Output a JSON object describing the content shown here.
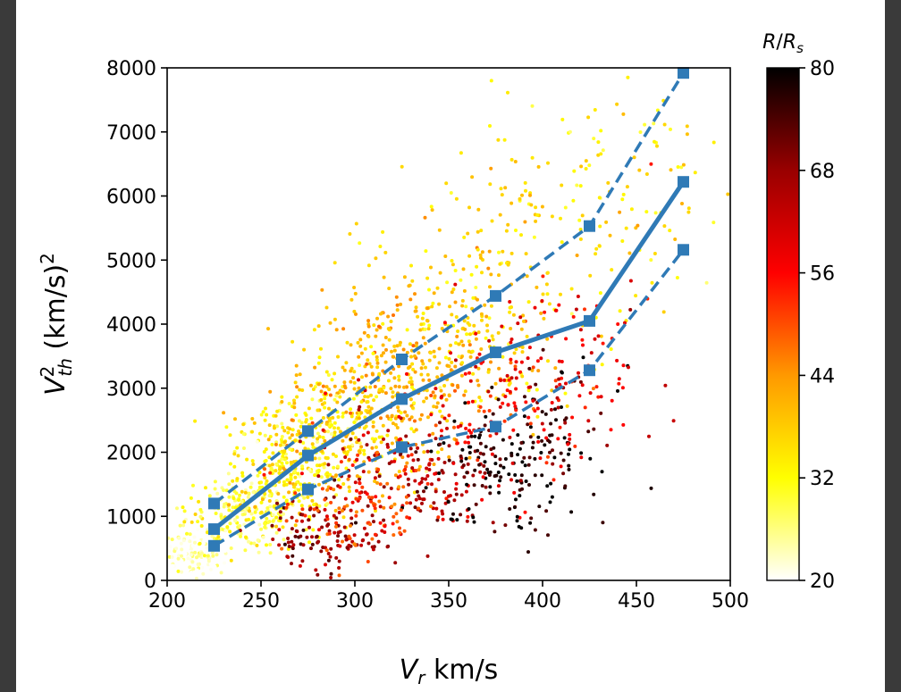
{
  "chart_data": {
    "type": "scatter",
    "xlabel_main": "V",
    "xlabel_sub": "r",
    "xlabel_unit": " km/s",
    "ylabel_main": "V",
    "ylabel_sup": "2",
    "ylabel_sub": "th",
    "ylabel_unit": " (km/s)",
    "ylabel_unit_sup": "2",
    "xlim": [
      200,
      500
    ],
    "ylim": [
      0,
      8000
    ],
    "x_ticks": [
      200,
      250,
      300,
      350,
      400,
      450,
      500
    ],
    "y_ticks": [
      0,
      1000,
      2000,
      3000,
      4000,
      5000,
      6000,
      7000,
      8000
    ],
    "colorbar": {
      "title_main": "R",
      "title_sep": "/",
      "title_main2": "R",
      "title_sub": "s",
      "range": [
        20,
        80
      ],
      "ticks": [
        20,
        32,
        44,
        56,
        68,
        80
      ],
      "colormap": "hot_r",
      "colors": [
        "#ffffff",
        "#ffff00",
        "#ff9900",
        "#ff0000",
        "#990000",
        "#000000"
      ]
    },
    "series": [
      {
        "style": "solid",
        "color": "#2f7ab6",
        "x": [
          225,
          275,
          325,
          375,
          425,
          475
        ],
        "y": [
          800,
          1950,
          2830,
          3560,
          4050,
          6220
        ]
      },
      {
        "style": "dashed",
        "color": "#2f7ab6",
        "x": [
          225,
          275,
          325,
          375,
          425,
          475
        ],
        "y": [
          1200,
          2330,
          3450,
          4440,
          5530,
          7920
        ]
      },
      {
        "style": "dashed",
        "color": "#2f7ab6",
        "x": [
          225,
          275,
          325,
          375,
          425,
          475
        ],
        "y": [
          540,
          1420,
          2080,
          2400,
          3280,
          5160
        ]
      }
    ],
    "scatter_clusters": [
      {
        "cx": 215,
        "cy": 400,
        "sx": 8,
        "sy": 220,
        "r": 22,
        "n": 150
      },
      {
        "cx": 240,
        "cy": 1100,
        "sx": 15,
        "sy": 300,
        "r": 29,
        "n": 220
      },
      {
        "cx": 265,
        "cy": 1800,
        "sx": 15,
        "sy": 450,
        "r": 32,
        "n": 240
      },
      {
        "cx": 290,
        "cy": 2400,
        "sx": 20,
        "sy": 550,
        "r": 36,
        "n": 260
      },
      {
        "cx": 320,
        "cy": 3100,
        "sx": 22,
        "sy": 650,
        "r": 40,
        "n": 260
      },
      {
        "cx": 350,
        "cy": 3800,
        "sx": 25,
        "sy": 750,
        "r": 38,
        "n": 200
      },
      {
        "cx": 390,
        "cy": 4800,
        "sx": 30,
        "sy": 1000,
        "r": 36,
        "n": 160
      },
      {
        "cx": 440,
        "cy": 6300,
        "sx": 30,
        "sy": 1000,
        "r": 34,
        "n": 90
      },
      {
        "cx": 285,
        "cy": 700,
        "sx": 15,
        "sy": 300,
        "r": 68,
        "n": 110
      },
      {
        "cx": 330,
        "cy": 1600,
        "sx": 25,
        "sy": 450,
        "r": 64,
        "n": 170
      },
      {
        "cx": 380,
        "cy": 1700,
        "sx": 20,
        "sy": 500,
        "r": 78,
        "n": 140
      },
      {
        "cx": 410,
        "cy": 2300,
        "sx": 15,
        "sy": 500,
        "r": 76,
        "n": 50
      },
      {
        "cx": 375,
        "cy": 2700,
        "sx": 30,
        "sy": 600,
        "r": 56,
        "n": 120
      },
      {
        "cx": 410,
        "cy": 3500,
        "sx": 25,
        "sy": 700,
        "r": 58,
        "n": 80
      },
      {
        "cx": 300,
        "cy": 1200,
        "sx": 20,
        "sy": 400,
        "r": 50,
        "n": 120
      }
    ]
  }
}
